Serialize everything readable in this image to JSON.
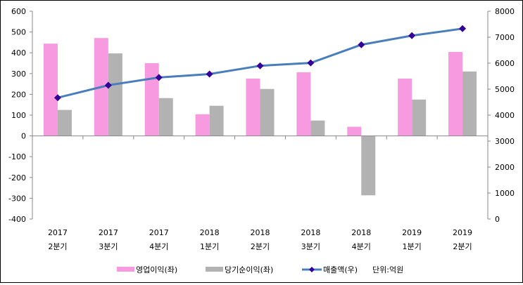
{
  "chart_data": {
    "type": "bar",
    "title": "",
    "categories": [
      {
        "year": "2017",
        "quarter": "2분기"
      },
      {
        "year": "2017",
        "quarter": "3분기"
      },
      {
        "year": "2017",
        "quarter": "4분기"
      },
      {
        "year": "2018",
        "quarter": "1분기"
      },
      {
        "year": "2018",
        "quarter": "2분기"
      },
      {
        "year": "2018",
        "quarter": "3분기"
      },
      {
        "year": "2018",
        "quarter": "4분기"
      },
      {
        "year": "2019",
        "quarter": "1분기"
      },
      {
        "year": "2019",
        "quarter": "2분기"
      }
    ],
    "series": [
      {
        "name": "영업이익(좌)",
        "type": "bar",
        "axis": "left",
        "color": "#F79AE0",
        "values": [
          444,
          471,
          350,
          104,
          276,
          306,
          44,
          276,
          404
        ]
      },
      {
        "name": "당기순이익(좌)",
        "type": "bar",
        "axis": "left",
        "color": "#B2B2B2",
        "values": [
          125,
          397,
          182,
          145,
          226,
          74,
          -286,
          175,
          310
        ]
      },
      {
        "name": "매출액(우)",
        "type": "line",
        "axis": "right",
        "color": "#4A7EBB",
        "marker_color": "#330099",
        "values": [
          4670,
          5150,
          5450,
          5580,
          5900,
          6010,
          6710,
          7060,
          7330
        ]
      }
    ],
    "left_axis": {
      "ylim": [
        -400,
        600
      ],
      "ticks": [
        "600",
        "500",
        "400",
        "300",
        "200",
        "100",
        "0",
        "-100",
        "-200",
        "-300",
        "-400"
      ]
    },
    "right_axis": {
      "ylim": [
        0,
        8000
      ],
      "ticks": [
        "8000",
        "7000",
        "6000",
        "5000",
        "4000",
        "3000",
        "2000",
        "1000",
        "0"
      ]
    },
    "unit_note": "단위:억원",
    "legend_position": "bottom",
    "grid": false
  }
}
